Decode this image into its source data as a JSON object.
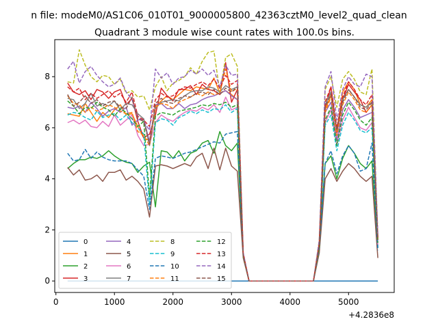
{
  "figure": {
    "suptitle": "n file: modeM0/AS1C06_010T01_9000005800_42363cztM0_level2_quad_clean"
  },
  "chart_data": {
    "type": "line",
    "title": "Quadrant 3 module wise count rates with 100.0s bins.",
    "xlabel": "",
    "ylabel": "",
    "x_offset_label": "+4.2836e8",
    "xlim": [
      -20,
      5780
    ],
    "ylim": [
      -0.45,
      9.45
    ],
    "xticks": [
      0,
      1000,
      2000,
      3000,
      4000,
      5000
    ],
    "yticks": [
      0,
      2,
      4,
      6,
      8
    ],
    "grid": false,
    "legend": {
      "placement": "lower-left",
      "columns": 4
    },
    "x": [
      200,
      300,
      400,
      500,
      600,
      700,
      800,
      900,
      1000,
      1100,
      1200,
      1300,
      1400,
      1500,
      1600,
      1700,
      1800,
      1900,
      2000,
      2100,
      2200,
      2300,
      2400,
      2500,
      2600,
      2700,
      2800,
      2900,
      3000,
      3100,
      3200,
      3300,
      3400,
      3500,
      3600,
      3700,
      3800,
      3900,
      4000,
      4100,
      4200,
      4300,
      4400,
      4500,
      4600,
      4700,
      4800,
      4900,
      5000,
      5100,
      5200,
      5300,
      5400,
      5500
    ],
    "series": [
      {
        "name": "0",
        "color": "#1f77b4",
        "dash": "solid",
        "values": [
          0,
          0,
          0,
          0,
          0,
          0,
          0,
          0,
          0,
          0,
          0,
          0,
          0,
          0,
          0,
          0,
          0,
          0,
          0,
          0,
          0,
          0,
          0,
          0,
          0,
          0,
          0,
          0,
          0,
          0,
          0,
          0,
          0,
          0,
          0,
          0,
          0,
          0,
          0,
          0,
          0,
          0,
          0,
          0,
          0,
          0,
          0,
          0,
          0,
          0,
          0,
          0,
          0,
          0
        ]
      },
      {
        "name": "1",
        "color": "#ff7f0e",
        "dash": "solid",
        "values": [
          6.55,
          6.5,
          6.45,
          6.95,
          6.6,
          6.25,
          6.6,
          6.4,
          6.7,
          6.9,
          6.5,
          6.55,
          6.05,
          5.6,
          5.5,
          6.85,
          7.05,
          7.25,
          7.1,
          7.3,
          7.5,
          7.45,
          7.6,
          7.55,
          7.5,
          7.95,
          7.35,
          7.45,
          7.3,
          7.1,
          1.0,
          0,
          0,
          0,
          0,
          0,
          0,
          0,
          0,
          0,
          0,
          0,
          0,
          1.4,
          6.7,
          7.3,
          5.9,
          7.4,
          7.8,
          7.5,
          6.9,
          6.8,
          7.1,
          1.6
        ]
      },
      {
        "name": "2",
        "color": "#2ca02c",
        "dash": "solid",
        "values": [
          4.4,
          4.6,
          4.75,
          4.75,
          4.85,
          4.8,
          4.9,
          5.1,
          4.9,
          4.75,
          4.65,
          4.6,
          4.25,
          4.5,
          4.65,
          2.9,
          5.1,
          5.05,
          4.8,
          5.1,
          4.7,
          5.0,
          5.1,
          5.4,
          5.5,
          5.0,
          5.85,
          5.3,
          5.1,
          5.4,
          1.0,
          0,
          0,
          0,
          0,
          0,
          0,
          0,
          0,
          0,
          0,
          0,
          0,
          1.3,
          4.6,
          4.9,
          4.0,
          4.8,
          5.3,
          5.0,
          4.6,
          4.4,
          4.7,
          1.3
        ]
      },
      {
        "name": "3",
        "color": "#d62728",
        "dash": "solid",
        "values": [
          7.75,
          7.4,
          7.3,
          7.45,
          7.1,
          7.5,
          7.4,
          7.15,
          7.4,
          7.5,
          6.9,
          7.15,
          6.25,
          5.6,
          5.75,
          6.5,
          7.55,
          7.25,
          7.05,
          7.5,
          7.5,
          7.65,
          7.3,
          7.7,
          7.5,
          7.45,
          7.3,
          8.55,
          7.0,
          7.5,
          1.0,
          0,
          0,
          0,
          0,
          0,
          0,
          0,
          0,
          0,
          0,
          0,
          0,
          1.4,
          6.8,
          7.6,
          5.8,
          7.1,
          7.7,
          7.4,
          7.1,
          6.6,
          6.9,
          1.7
        ]
      },
      {
        "name": "4",
        "color": "#9467bd",
        "dash": "solid",
        "values": [
          6.8,
          6.75,
          6.85,
          6.6,
          7.0,
          6.75,
          6.45,
          6.65,
          6.75,
          6.6,
          6.8,
          6.1,
          6.3,
          6.35,
          5.45,
          6.9,
          6.95,
          6.75,
          6.75,
          6.95,
          6.75,
          6.9,
          6.95,
          7.1,
          7.2,
          7.25,
          7.35,
          7.45,
          7.25,
          7.1,
          1.0,
          0,
          0,
          0,
          0,
          0,
          0,
          0,
          0,
          0,
          0,
          0,
          0,
          1.3,
          6.6,
          7.0,
          5.5,
          6.7,
          7.1,
          6.8,
          6.4,
          6.5,
          6.6,
          1.6
        ]
      },
      {
        "name": "5",
        "color": "#8c564b",
        "dash": "solid",
        "values": [
          4.45,
          4.15,
          4.35,
          3.95,
          4.0,
          4.15,
          3.9,
          4.25,
          4.25,
          4.35,
          3.95,
          4.1,
          3.9,
          3.6,
          2.5,
          4.5,
          4.55,
          4.5,
          4.4,
          4.5,
          4.6,
          4.5,
          4.85,
          5.0,
          4.4,
          5.2,
          4.35,
          5.2,
          4.5,
          4.3,
          0.9,
          0,
          0,
          0,
          0,
          0,
          0,
          0,
          0,
          0,
          0,
          0,
          0,
          1.1,
          4.0,
          4.4,
          3.9,
          4.3,
          4.6,
          4.4,
          4.1,
          3.9,
          4.1,
          0.9
        ]
      },
      {
        "name": "6",
        "color": "#e377c2",
        "dash": "solid",
        "values": [
          6.2,
          6.3,
          6.15,
          6.3,
          6.05,
          6.0,
          6.25,
          6.05,
          6.5,
          6.1,
          6.3,
          6.5,
          5.7,
          5.3,
          5.35,
          6.2,
          6.5,
          6.35,
          6.25,
          6.45,
          6.6,
          6.7,
          6.65,
          6.8,
          6.7,
          6.9,
          6.6,
          7.2,
          6.7,
          6.8,
          1.0,
          0,
          0,
          0,
          0,
          0,
          0,
          0,
          0,
          0,
          0,
          0,
          0,
          1.3,
          6.2,
          6.7,
          5.3,
          6.3,
          6.8,
          6.4,
          6.0,
          5.9,
          6.2,
          1.4
        ]
      },
      {
        "name": "7",
        "color": "#7f7f7f",
        "dash": "solid",
        "values": [
          7.15,
          7.1,
          6.75,
          6.95,
          7.35,
          6.85,
          6.95,
          6.85,
          7.05,
          6.7,
          6.95,
          6.9,
          6.55,
          6.35,
          5.3,
          6.75,
          7.0,
          7.05,
          7.1,
          7.05,
          7.25,
          7.4,
          7.45,
          7.45,
          7.6,
          7.55,
          7.4,
          7.65,
          7.5,
          7.6,
          1.0,
          0,
          0,
          0,
          0,
          0,
          0,
          0,
          0,
          0,
          0,
          0,
          0,
          1.4,
          6.9,
          7.4,
          5.9,
          7.1,
          7.5,
          7.2,
          6.9,
          6.8,
          7.0,
          1.6
        ]
      },
      {
        "name": "8",
        "color": "#bcbd22",
        "dash": "dashed",
        "values": [
          7.8,
          7.75,
          9.05,
          8.45,
          8.0,
          7.8,
          8.05,
          8.0,
          7.7,
          7.9,
          7.35,
          7.45,
          7.2,
          7.25,
          6.7,
          7.6,
          8.0,
          7.45,
          7.75,
          7.85,
          8.0,
          8.35,
          8.1,
          8.6,
          8.95,
          9.0,
          7.4,
          8.75,
          8.9,
          8.4,
          1.1,
          0,
          0,
          0,
          0,
          0,
          0,
          0,
          0,
          0,
          0,
          0,
          0,
          1.6,
          7.5,
          8.0,
          6.8,
          7.9,
          8.2,
          7.9,
          7.4,
          7.3,
          8.3,
          1.8
        ]
      },
      {
        "name": "9",
        "color": "#17becf",
        "dash": "dashed",
        "values": [
          6.5,
          6.6,
          6.55,
          6.4,
          6.3,
          6.65,
          6.4,
          6.5,
          6.55,
          6.3,
          6.5,
          6.2,
          6.0,
          5.75,
          3.0,
          6.2,
          6.35,
          6.3,
          6.1,
          6.4,
          6.5,
          6.65,
          6.55,
          6.7,
          6.6,
          6.75,
          6.7,
          6.9,
          6.6,
          6.75,
          1.0,
          0,
          0,
          0,
          0,
          0,
          0,
          0,
          0,
          0,
          0,
          0,
          0,
          1.3,
          6.1,
          6.5,
          5.1,
          6.1,
          6.6,
          6.3,
          5.9,
          5.8,
          6.0,
          1.3
        ]
      },
      {
        "name": "10",
        "color": "#1f77b4",
        "dash": "dashed",
        "values": [
          5.0,
          4.7,
          4.75,
          5.15,
          4.8,
          5.05,
          4.85,
          4.75,
          4.7,
          4.7,
          4.7,
          4.6,
          4.35,
          4.1,
          2.8,
          4.8,
          4.9,
          4.85,
          4.8,
          4.9,
          5.0,
          5.05,
          5.15,
          5.25,
          5.35,
          5.45,
          5.4,
          5.75,
          5.8,
          5.85,
          1.0,
          0,
          0,
          0,
          0,
          0,
          0,
          0,
          0,
          0,
          0,
          0,
          0,
          1.3,
          4.6,
          5.1,
          4.2,
          4.9,
          5.3,
          5.0,
          4.3,
          4.4,
          5.4,
          1.2
        ]
      },
      {
        "name": "11",
        "color": "#ff7f0e",
        "dash": "dashed",
        "values": [
          7.25,
          6.95,
          6.9,
          6.6,
          6.8,
          6.65,
          6.75,
          6.9,
          6.8,
          6.65,
          6.55,
          6.6,
          5.85,
          5.7,
          5.3,
          6.8,
          6.95,
          6.9,
          6.75,
          7.0,
          7.1,
          7.2,
          7.35,
          7.25,
          7.4,
          7.3,
          7.35,
          8.3,
          7.4,
          7.55,
          1.0,
          0,
          0,
          0,
          0,
          0,
          0,
          0,
          0,
          0,
          0,
          0,
          0,
          1.4,
          6.6,
          7.2,
          5.7,
          6.9,
          7.4,
          7.1,
          6.7,
          6.6,
          6.9,
          1.6
        ]
      },
      {
        "name": "12",
        "color": "#2ca02c",
        "dash": "dashed",
        "values": [
          7.05,
          6.85,
          6.55,
          6.8,
          6.75,
          7.0,
          6.8,
          6.7,
          6.45,
          6.75,
          6.6,
          6.35,
          6.05,
          6.25,
          3.3,
          6.45,
          6.6,
          6.55,
          6.5,
          6.65,
          6.7,
          6.75,
          6.8,
          6.9,
          6.85,
          6.95,
          6.9,
          7.0,
          6.8,
          6.9,
          1.0,
          0,
          0,
          0,
          0,
          0,
          0,
          0,
          0,
          0,
          0,
          0,
          0,
          1.3,
          6.3,
          6.8,
          5.3,
          6.5,
          7.0,
          6.7,
          6.3,
          6.1,
          6.4,
          1.5
        ]
      },
      {
        "name": "13",
        "color": "#d62728",
        "dash": "dashed",
        "values": [
          7.6,
          7.4,
          7.55,
          7.1,
          7.35,
          7.15,
          7.3,
          7.45,
          7.2,
          7.35,
          7.0,
          7.4,
          6.45,
          6.3,
          6.05,
          7.1,
          7.35,
          7.2,
          7.25,
          7.45,
          7.6,
          7.55,
          7.7,
          7.8,
          7.65,
          7.9,
          7.55,
          8.05,
          7.7,
          7.85,
          1.1,
          0,
          0,
          0,
          0,
          0,
          0,
          0,
          0,
          0,
          0,
          0,
          0,
          1.5,
          7.0,
          7.6,
          6.0,
          7.2,
          7.8,
          7.5,
          7.1,
          6.9,
          7.3,
          1.7
        ]
      },
      {
        "name": "14",
        "color": "#9467bd",
        "dash": "dashed",
        "values": [
          8.3,
          8.6,
          7.75,
          8.2,
          8.4,
          8.05,
          7.8,
          7.6,
          7.7,
          7.95,
          7.4,
          7.1,
          6.4,
          6.25,
          5.9,
          8.3,
          7.95,
          8.15,
          7.7,
          7.95,
          8.0,
          8.25,
          8.1,
          8.3,
          8.05,
          8.25,
          7.6,
          8.45,
          8.05,
          8.1,
          1.1,
          0,
          0,
          0,
          0,
          0,
          0,
          0,
          0,
          0,
          0,
          0,
          0,
          1.6,
          7.6,
          8.2,
          6.3,
          7.5,
          8.0,
          7.7,
          7.6,
          8.1,
          8.0,
          1.8
        ]
      },
      {
        "name": "15",
        "color": "#8c564b",
        "dash": "dashed",
        "values": [
          7.3,
          6.85,
          7.0,
          7.25,
          6.95,
          7.1,
          6.85,
          7.0,
          7.05,
          6.8,
          6.75,
          7.2,
          6.35,
          6.25,
          5.35,
          6.95,
          7.15,
          7.0,
          6.95,
          7.15,
          7.25,
          7.2,
          7.35,
          7.4,
          7.3,
          7.5,
          7.3,
          7.55,
          7.4,
          7.6,
          1.0,
          0,
          0,
          0,
          0,
          0,
          0,
          0,
          0,
          0,
          0,
          0,
          0,
          1.4,
          6.8,
          7.3,
          5.9,
          7.0,
          7.5,
          7.2,
          6.8,
          6.7,
          7.0,
          1.6
        ]
      }
    ]
  }
}
